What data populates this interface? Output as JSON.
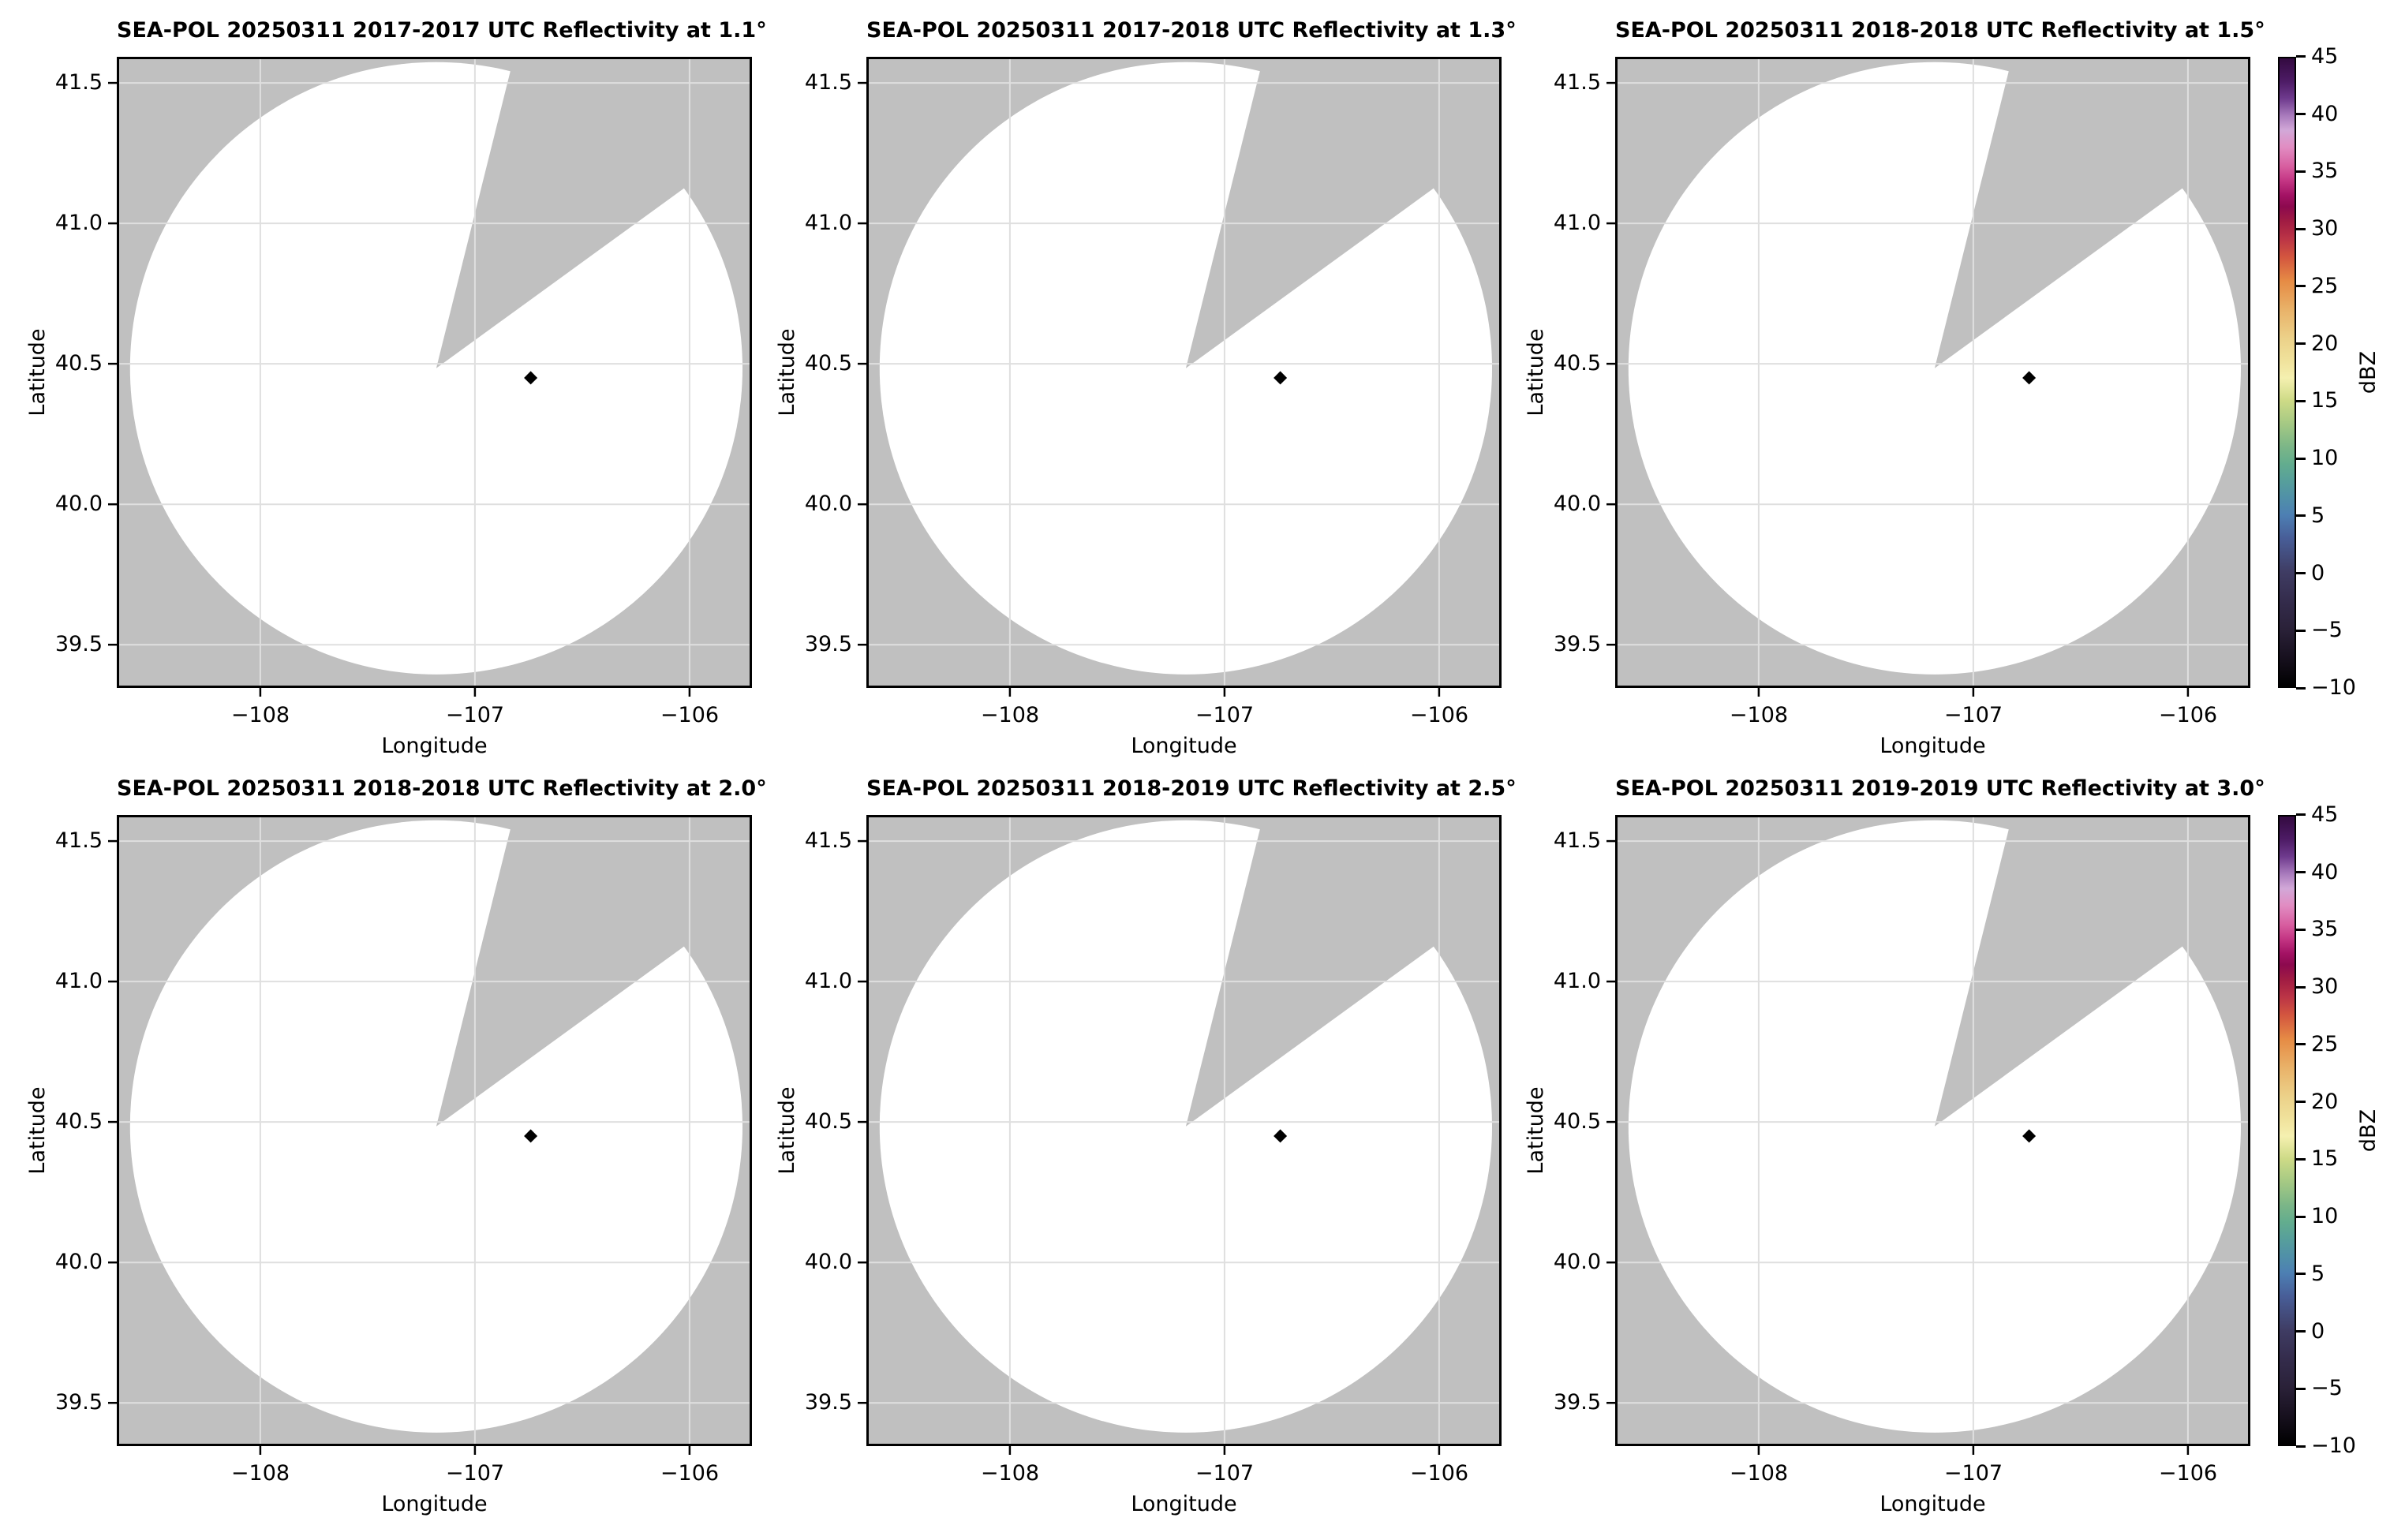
{
  "figure": {
    "background": "#ffffff"
  },
  "chart_data": {
    "type": "heatmap",
    "subtype": "radar-ppi-panel-grid",
    "description": "Six SEA-POL radar PPI reflectivity panels (2 rows x 3 cols) on 20250311; scans contain no echoes: white coverage circle over gray no-data background with one blocked azimuth sector and a site marker.",
    "radar": "SEA-POL",
    "date": "20250311",
    "panels": [
      {
        "title": "SEA-POL 20250311 2017-2017 UTC Reflectivity at 1.1°",
        "time_utc": "2017-2017",
        "elevation_deg": 1.1
      },
      {
        "title": "SEA-POL 20250311 2017-2018 UTC Reflectivity at 1.3°",
        "time_utc": "2017-2018",
        "elevation_deg": 1.3
      },
      {
        "title": "SEA-POL 20250311 2018-2018 UTC Reflectivity at 1.5°",
        "time_utc": "2018-2018",
        "elevation_deg": 1.5
      },
      {
        "title": "SEA-POL 20250311 2018-2018 UTC Reflectivity at 2.0°",
        "time_utc": "2018-2018",
        "elevation_deg": 2.0
      },
      {
        "title": "SEA-POL 20250311 2018-2019 UTC Reflectivity at 2.5°",
        "time_utc": "2018-2019",
        "elevation_deg": 2.5
      },
      {
        "title": "SEA-POL 20250311 2019-2019 UTC Reflectivity at 3.0°",
        "time_utc": "2019-2019",
        "elevation_deg": 3.0
      }
    ],
    "xlabel": "Longitude",
    "ylabel": "Latitude",
    "xlim": [
      -108.669,
      -105.709
    ],
    "ylim": [
      39.346,
      41.593
    ],
    "xticks": [
      -108,
      -107,
      -106
    ],
    "xtick_labels": [
      "−108",
      "−107",
      "−106"
    ],
    "yticks": [
      41.5,
      41.0,
      40.5,
      40.0,
      39.5
    ],
    "ytick_labels": [
      "41.5",
      "41.0",
      "40.5",
      "40.0",
      "39.5"
    ],
    "grid": true,
    "coverage_circle": {
      "center_lon": -107.18,
      "center_lat": 40.484,
      "radius_lon_deg": 1.427,
      "radius_lat_deg": 1.09
    },
    "blocked_sector_azimuth_deg": [
      14,
      54
    ],
    "marker": {
      "lon": -106.74,
      "lat": 40.45,
      "shape": "diamond",
      "color": "#000000"
    },
    "no_echo": true,
    "colors": {
      "plot_background": "#c0c0c0",
      "coverage_fill": "#ffffff",
      "gridline": "#dfdfdf",
      "axis": "#000000",
      "text": "#000000"
    },
    "colorbar": {
      "label": "dBZ",
      "min": -10,
      "max": 45,
      "tick_values": [
        45,
        40,
        35,
        30,
        25,
        20,
        15,
        10,
        5,
        0,
        -5,
        -10
      ],
      "tick_labels": [
        "45",
        "40",
        "35",
        "30",
        "25",
        "20",
        "15",
        "10",
        "5",
        "0",
        "−5",
        "−10"
      ],
      "stops": [
        [
          45,
          "#330a40"
        ],
        [
          43,
          "#4d1b65"
        ],
        [
          41.5,
          "#6e3a8d"
        ],
        [
          40,
          "#a87abc"
        ],
        [
          38.7,
          "#d2a8d8"
        ],
        [
          37.2,
          "#e18cc2"
        ],
        [
          35.5,
          "#d75d9f"
        ],
        [
          34.3,
          "#c43684"
        ],
        [
          33,
          "#a31264"
        ],
        [
          32,
          "#8c094e"
        ],
        [
          30.7,
          "#a11c43"
        ],
        [
          29.2,
          "#bb3446"
        ],
        [
          27.6,
          "#d3563f"
        ],
        [
          25.5,
          "#e68b45"
        ],
        [
          23,
          "#e9b269"
        ],
        [
          20.5,
          "#ecd189"
        ],
        [
          18.5,
          "#f0e29c"
        ],
        [
          17,
          "#f5f0b0"
        ],
        [
          15,
          "#cdda86"
        ],
        [
          13,
          "#a5c984"
        ],
        [
          11,
          "#7cb687"
        ],
        [
          9.5,
          "#63ad8e"
        ],
        [
          8,
          "#579f9b"
        ],
        [
          6.5,
          "#5090a8"
        ],
        [
          5,
          "#4d7fb3"
        ],
        [
          3,
          "#485e98"
        ],
        [
          0,
          "#3f3c63"
        ],
        [
          -2.5,
          "#342c4c"
        ],
        [
          -5,
          "#2a2138"
        ],
        [
          -7.5,
          "#17101e"
        ],
        [
          -10,
          "#000000"
        ]
      ]
    }
  }
}
